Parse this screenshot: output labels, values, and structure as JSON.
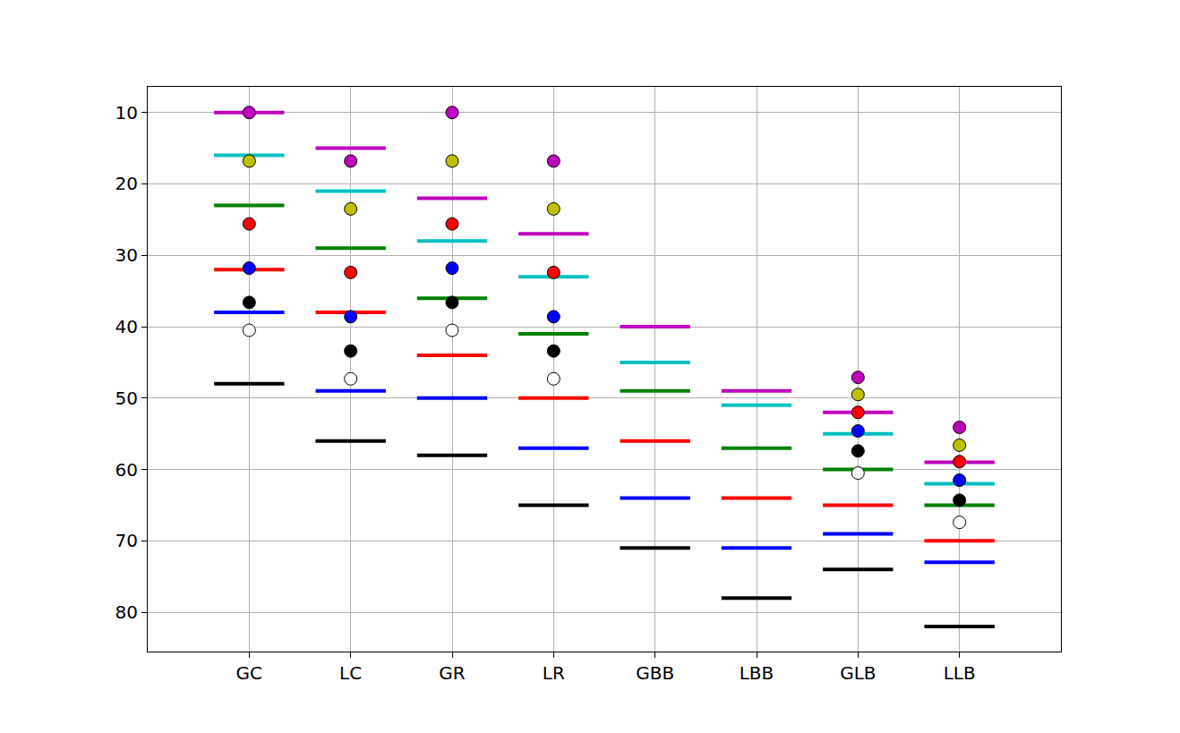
{
  "chart_data": {
    "type": "scatter",
    "categories": [
      "GC",
      "LC",
      "GR",
      "LR",
      "GBB",
      "LBB",
      "GLB",
      "LLB"
    ],
    "series": [
      {
        "color": "#bf00bf",
        "marker": "line",
        "values": [
          10,
          15,
          22,
          27,
          40,
          49,
          52,
          59
        ]
      },
      {
        "color": "#00bfbf",
        "marker": "line",
        "values": [
          16,
          21,
          28,
          33,
          45,
          51,
          55,
          62
        ]
      },
      {
        "color": "#008000",
        "marker": "line",
        "values": [
          23,
          29,
          36,
          41,
          49,
          57,
          60,
          65
        ]
      },
      {
        "color": "#ff0000",
        "marker": "line",
        "values": [
          32,
          38,
          44,
          50,
          56,
          64,
          65,
          70
        ]
      },
      {
        "color": "#0000ff",
        "marker": "line",
        "values": [
          38,
          49,
          50,
          57,
          64,
          71,
          69,
          73
        ]
      },
      {
        "color": "#000000",
        "marker": "line",
        "values": [
          48,
          56,
          58,
          65,
          71,
          78,
          74,
          82
        ]
      },
      {
        "color": "#bf00bf",
        "marker": "circle",
        "values": [
          10,
          16.8,
          10,
          16.8,
          null,
          null,
          47.1,
          54.1
        ]
      },
      {
        "color": "#bfbf00",
        "marker": "circle",
        "values": [
          16.8,
          23.5,
          16.8,
          23.5,
          null,
          null,
          49.5,
          56.6
        ]
      },
      {
        "color": "#ff0000",
        "marker": "circle",
        "values": [
          25.6,
          32.4,
          25.6,
          32.4,
          null,
          null,
          52,
          58.9
        ]
      },
      {
        "color": "#0000ff",
        "marker": "circle",
        "values": [
          31.8,
          38.6,
          31.8,
          38.6,
          null,
          null,
          54.6,
          61.5
        ]
      },
      {
        "color": "#000000",
        "marker": "circle",
        "values": [
          36.6,
          43.4,
          36.6,
          43.4,
          null,
          null,
          57.4,
          64.3
        ]
      },
      {
        "color": "#ffffff",
        "marker": "circle",
        "values": [
          40.5,
          47.3,
          40.5,
          47.3,
          null,
          null,
          60.5,
          67.4
        ]
      }
    ],
    "ylim": [
      85.5,
      6.4
    ],
    "yticks": [
      10,
      20,
      30,
      40,
      50,
      60,
      70,
      80
    ],
    "grid": true
  }
}
